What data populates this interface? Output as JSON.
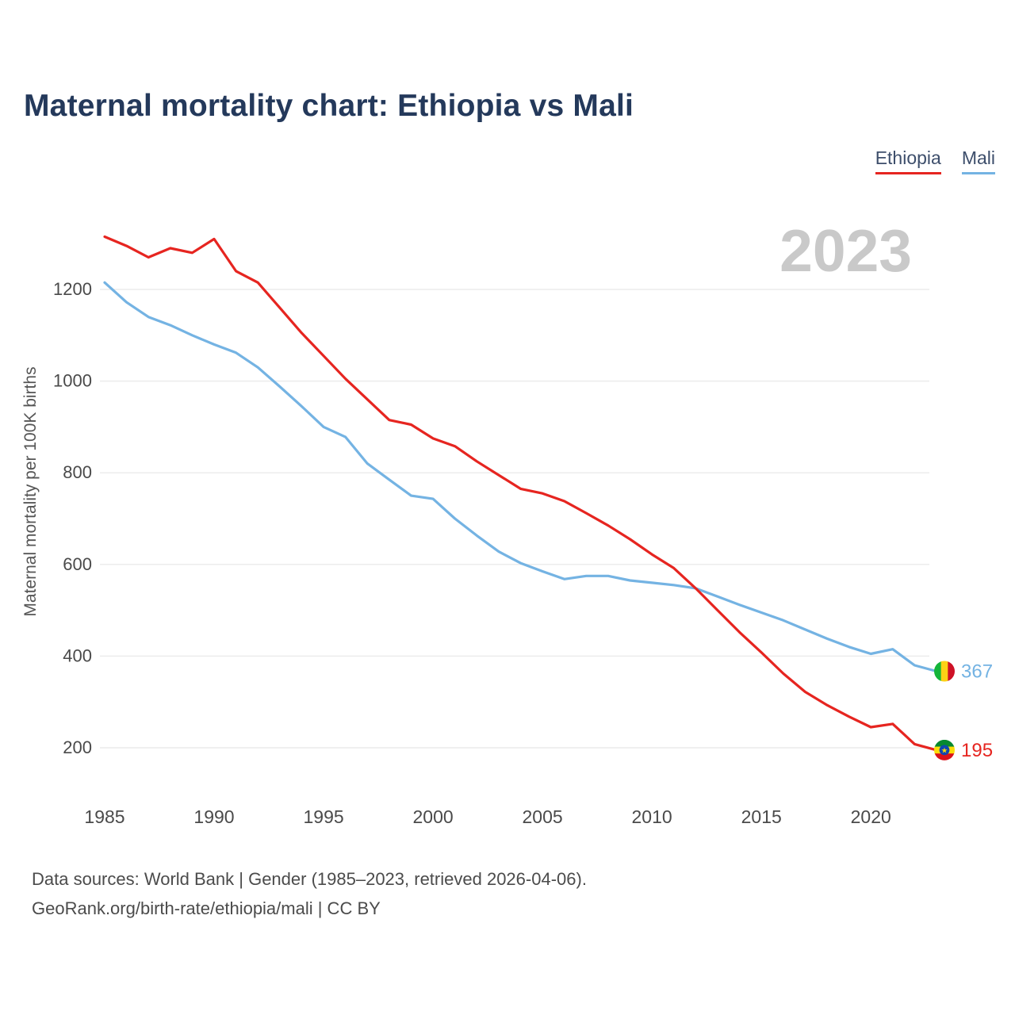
{
  "title": "Maternal mortality chart: Ethiopia vs Mali",
  "watermark": "2023",
  "ylabel": "Maternal mortality per 100K births",
  "legend": [
    {
      "label": "Ethiopia",
      "color": "#e62520"
    },
    {
      "label": "Mali",
      "color": "#74b3e3"
    }
  ],
  "footer": {
    "line1": "Data sources: World Bank | Gender (1985–2023, retrieved 2026-04-06).",
    "line2": "GeoRank.org/birth-rate/ethiopia/mali | CC BY"
  },
  "icons": {
    "star": "★"
  },
  "chart_data": {
    "type": "line",
    "title": "Maternal mortality chart: Ethiopia vs Mali",
    "xlabel": "",
    "ylabel": "Maternal mortality per 100K births",
    "grid": "horizontal",
    "legend_position": "top-right",
    "xlim": [
      1985,
      2023
    ],
    "ylim": [
      150,
      1350
    ],
    "xticks": [
      1985,
      1990,
      1995,
      2000,
      2005,
      2010,
      2015,
      2020
    ],
    "yticks": [
      200,
      400,
      600,
      800,
      1000,
      1200
    ],
    "x": [
      1985,
      1986,
      1987,
      1988,
      1989,
      1990,
      1991,
      1992,
      1993,
      1994,
      1995,
      1996,
      1997,
      1998,
      1999,
      2000,
      2001,
      2002,
      2003,
      2004,
      2005,
      2006,
      2007,
      2008,
      2009,
      2010,
      2011,
      2012,
      2013,
      2014,
      2015,
      2016,
      2017,
      2018,
      2019,
      2020,
      2021,
      2022,
      2023
    ],
    "series": [
      {
        "name": "Ethiopia",
        "color": "#e62520",
        "end_label": "195",
        "flag": "ethiopia-flag-icon",
        "flag_layout": "horizontal",
        "flag_colors": [
          "#078930",
          "#fcdd09",
          "#da121a"
        ],
        "disc_color": "#0f47af",
        "values": [
          1315,
          1295,
          1270,
          1290,
          1280,
          1310,
          1240,
          1215,
          1160,
          1105,
          1055,
          1005,
          960,
          915,
          905,
          875,
          858,
          825,
          795,
          765,
          755,
          738,
          712,
          685,
          655,
          622,
          592,
          548,
          500,
          452,
          408,
          362,
          322,
          293,
          268,
          245,
          252,
          208,
          195
        ]
      },
      {
        "name": "Mali",
        "color": "#74b3e3",
        "end_label": "367",
        "flag": "mali-flag-icon",
        "flag_layout": "vertical",
        "flag_colors": [
          "#14b53a",
          "#fcd116",
          "#ce1126"
        ],
        "disc_color": "",
        "values": [
          1215,
          1172,
          1140,
          1122,
          1100,
          1080,
          1062,
          1030,
          988,
          945,
          900,
          878,
          820,
          785,
          750,
          743,
          700,
          663,
          628,
          603,
          585,
          568,
          575,
          575,
          565,
          560,
          555,
          548,
          530,
          512,
          495,
          478,
          458,
          438,
          420,
          405,
          415,
          380,
          367
        ]
      }
    ]
  }
}
